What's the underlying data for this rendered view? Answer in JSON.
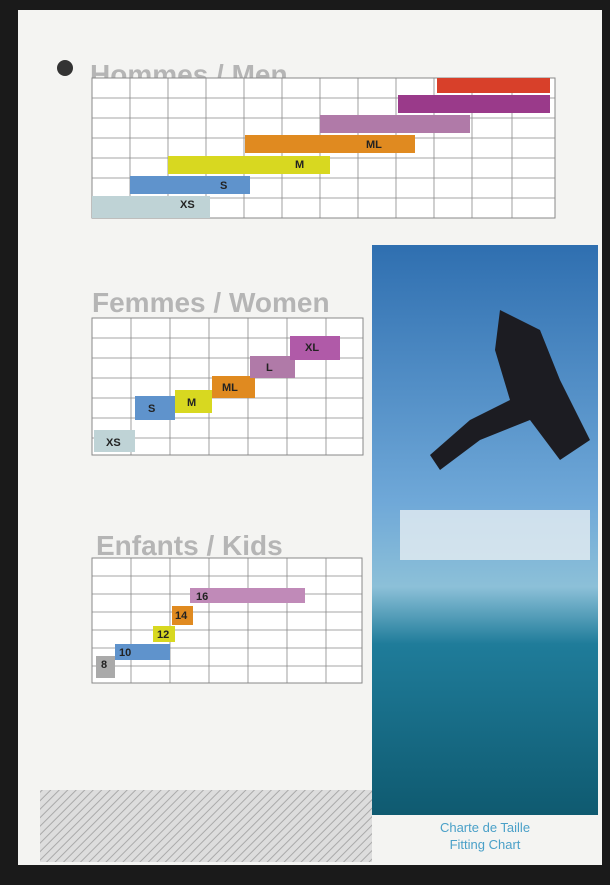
{
  "men": {
    "title": "Hommes / Men",
    "sizes": [
      "XS",
      "S",
      "M",
      "ML"
    ]
  },
  "women": {
    "title": "Femmes / Women",
    "sizes": [
      "XS",
      "S",
      "M",
      "ML",
      "L",
      "XL"
    ]
  },
  "kids": {
    "title": "Enfants / Kids",
    "sizes": [
      "8",
      "10",
      "12",
      "14",
      "16"
    ]
  },
  "caption": {
    "line1": "Charte de Taille",
    "line2": "Fitting Chart"
  }
}
